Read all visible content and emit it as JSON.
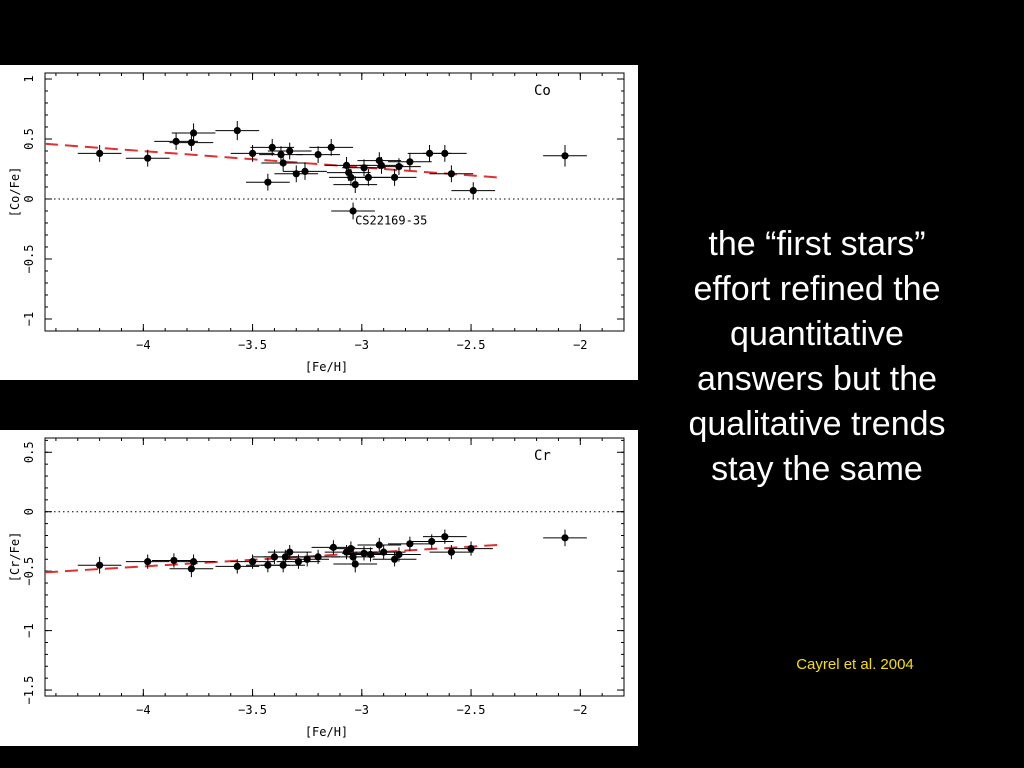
{
  "caption": {
    "lines": [
      "the “first stars”",
      "effort refined the",
      "quantitative",
      "answers but the",
      "qualitative trends",
      "stay the same"
    ]
  },
  "credit": "Cayrel et al. 2004",
  "colors": {
    "background": "#000000",
    "caption": "#ffffff",
    "credit": "#f5e000",
    "trend": "#e03030",
    "points": "#000000"
  },
  "chart_data": [
    {
      "type": "scatter",
      "element_label": "Co",
      "xlabel": "[Fe/H]",
      "ylabel": "[Co/Fe]",
      "xlim": [
        -4.45,
        -1.8
      ],
      "ylim": [
        -1.1,
        1.05
      ],
      "xticks": [
        -4,
        -3.5,
        -3,
        -2.5,
        -2
      ],
      "xtick_labels": [
        "−4",
        "−3.5",
        "−3",
        "−2.5",
        "−2"
      ],
      "yticks": [
        -1,
        -0.5,
        0,
        0.5,
        1
      ],
      "ytick_labels": [
        "−1",
        "−0.5",
        "0",
        "0.5",
        "1"
      ],
      "reference_line": 0,
      "trend": {
        "x": [
          -4.45,
          -2.38
        ],
        "y": [
          0.46,
          0.18
        ],
        "style": "dashed",
        "color": "#e03030"
      },
      "annotations": [
        {
          "text": "CS22169-35",
          "x": -3.04,
          "y": -0.18
        }
      ],
      "points": [
        {
          "x": -4.2,
          "y": 0.38,
          "xerr": 0.1,
          "yerr": 0.07
        },
        {
          "x": -3.98,
          "y": 0.34,
          "xerr": 0.1,
          "yerr": 0.07
        },
        {
          "x": -3.85,
          "y": 0.48,
          "xerr": 0.1,
          "yerr": 0.07
        },
        {
          "x": -3.78,
          "y": 0.47,
          "xerr": 0.1,
          "yerr": 0.07
        },
        {
          "x": -3.77,
          "y": 0.55,
          "xerr": 0.1,
          "yerr": 0.08
        },
        {
          "x": -3.57,
          "y": 0.57,
          "xerr": 0.1,
          "yerr": 0.08
        },
        {
          "x": -3.5,
          "y": 0.38,
          "xerr": 0.1,
          "yerr": 0.07
        },
        {
          "x": -3.43,
          "y": 0.14,
          "xerr": 0.1,
          "yerr": 0.07
        },
        {
          "x": -3.41,
          "y": 0.43,
          "xerr": 0.1,
          "yerr": 0.07
        },
        {
          "x": -3.37,
          "y": 0.37,
          "xerr": 0.1,
          "yerr": 0.07
        },
        {
          "x": -3.36,
          "y": 0.3,
          "xerr": 0.1,
          "yerr": 0.07
        },
        {
          "x": -3.33,
          "y": 0.4,
          "xerr": 0.1,
          "yerr": 0.07
        },
        {
          "x": -3.3,
          "y": 0.21,
          "xerr": 0.1,
          "yerr": 0.07
        },
        {
          "x": -3.26,
          "y": 0.23,
          "xerr": 0.1,
          "yerr": 0.07
        },
        {
          "x": -3.2,
          "y": 0.37,
          "xerr": 0.1,
          "yerr": 0.07
        },
        {
          "x": -3.14,
          "y": 0.43,
          "xerr": 0.1,
          "yerr": 0.07
        },
        {
          "x": -3.07,
          "y": 0.28,
          "xerr": 0.1,
          "yerr": 0.07
        },
        {
          "x": -3.06,
          "y": 0.22,
          "xerr": 0.1,
          "yerr": 0.07
        },
        {
          "x": -3.05,
          "y": 0.18,
          "xerr": 0.1,
          "yerr": 0.07
        },
        {
          "x": -3.04,
          "y": -0.1,
          "xerr": 0.1,
          "yerr": 0.07
        },
        {
          "x": -3.03,
          "y": 0.12,
          "xerr": 0.1,
          "yerr": 0.07
        },
        {
          "x": -2.99,
          "y": 0.26,
          "xerr": 0.1,
          "yerr": 0.07
        },
        {
          "x": -2.97,
          "y": 0.18,
          "xerr": 0.1,
          "yerr": 0.07
        },
        {
          "x": -2.92,
          "y": 0.32,
          "xerr": 0.1,
          "yerr": 0.07
        },
        {
          "x": -2.91,
          "y": 0.28,
          "xerr": 0.1,
          "yerr": 0.07
        },
        {
          "x": -2.85,
          "y": 0.18,
          "xerr": 0.1,
          "yerr": 0.07
        },
        {
          "x": -2.83,
          "y": 0.27,
          "xerr": 0.1,
          "yerr": 0.07
        },
        {
          "x": -2.78,
          "y": 0.31,
          "xerr": 0.1,
          "yerr": 0.07
        },
        {
          "x": -2.69,
          "y": 0.38,
          "xerr": 0.1,
          "yerr": 0.07
        },
        {
          "x": -2.62,
          "y": 0.38,
          "xerr": 0.1,
          "yerr": 0.07
        },
        {
          "x": -2.59,
          "y": 0.21,
          "xerr": 0.1,
          "yerr": 0.07
        },
        {
          "x": -2.49,
          "y": 0.07,
          "xerr": 0.1,
          "yerr": 0.07
        },
        {
          "x": -2.07,
          "y": 0.36,
          "xerr": 0.1,
          "yerr": 0.09
        }
      ]
    },
    {
      "type": "scatter",
      "element_label": "Cr",
      "xlabel": "[Fe/H]",
      "ylabel": "[Cr/Fe]",
      "xlim": [
        -4.45,
        -1.8
      ],
      "ylim": [
        -1.55,
        0.62
      ],
      "xticks": [
        -4,
        -3.5,
        -3,
        -2.5,
        -2
      ],
      "xtick_labels": [
        "−4",
        "−3.5",
        "−3",
        "−2.5",
        "−2"
      ],
      "yticks": [
        -1.5,
        -1,
        -0.5,
        0,
        0.5
      ],
      "ytick_labels": [
        "−1.5",
        "−1",
        "−0.5",
        "0",
        "0.5"
      ],
      "reference_line": 0,
      "trend": {
        "x": [
          -4.45,
          -2.38
        ],
        "y": [
          -0.51,
          -0.28
        ],
        "style": "dashed",
        "color": "#e03030"
      },
      "annotations": [],
      "points": [
        {
          "x": -4.2,
          "y": -0.45,
          "xerr": 0.1,
          "yerr": 0.07
        },
        {
          "x": -3.98,
          "y": -0.42,
          "xerr": 0.1,
          "yerr": 0.06
        },
        {
          "x": -3.86,
          "y": -0.41,
          "xerr": 0.1,
          "yerr": 0.06
        },
        {
          "x": -3.78,
          "y": -0.48,
          "xerr": 0.1,
          "yerr": 0.07
        },
        {
          "x": -3.77,
          "y": -0.42,
          "xerr": 0.1,
          "yerr": 0.06
        },
        {
          "x": -3.57,
          "y": -0.46,
          "xerr": 0.1,
          "yerr": 0.06
        },
        {
          "x": -3.5,
          "y": -0.42,
          "xerr": 0.1,
          "yerr": 0.06
        },
        {
          "x": -3.43,
          "y": -0.45,
          "xerr": 0.1,
          "yerr": 0.06
        },
        {
          "x": -3.4,
          "y": -0.38,
          "xerr": 0.1,
          "yerr": 0.06
        },
        {
          "x": -3.36,
          "y": -0.45,
          "xerr": 0.1,
          "yerr": 0.06
        },
        {
          "x": -3.35,
          "y": -0.38,
          "xerr": 0.1,
          "yerr": 0.06
        },
        {
          "x": -3.33,
          "y": -0.34,
          "xerr": 0.1,
          "yerr": 0.06
        },
        {
          "x": -3.29,
          "y": -0.42,
          "xerr": 0.1,
          "yerr": 0.06
        },
        {
          "x": -3.25,
          "y": -0.4,
          "xerr": 0.1,
          "yerr": 0.06
        },
        {
          "x": -3.2,
          "y": -0.38,
          "xerr": 0.1,
          "yerr": 0.06
        },
        {
          "x": -3.13,
          "y": -0.3,
          "xerr": 0.1,
          "yerr": 0.06
        },
        {
          "x": -3.07,
          "y": -0.34,
          "xerr": 0.1,
          "yerr": 0.06
        },
        {
          "x": -3.05,
          "y": -0.31,
          "xerr": 0.1,
          "yerr": 0.06
        },
        {
          "x": -3.04,
          "y": -0.38,
          "xerr": 0.1,
          "yerr": 0.06
        },
        {
          "x": -3.03,
          "y": -0.44,
          "xerr": 0.1,
          "yerr": 0.07
        },
        {
          "x": -2.99,
          "y": -0.35,
          "xerr": 0.1,
          "yerr": 0.06
        },
        {
          "x": -2.96,
          "y": -0.36,
          "xerr": 0.1,
          "yerr": 0.06
        },
        {
          "x": -2.92,
          "y": -0.28,
          "xerr": 0.1,
          "yerr": 0.06
        },
        {
          "x": -2.9,
          "y": -0.34,
          "xerr": 0.1,
          "yerr": 0.06
        },
        {
          "x": -2.85,
          "y": -0.4,
          "xerr": 0.1,
          "yerr": 0.06
        },
        {
          "x": -2.83,
          "y": -0.36,
          "xerr": 0.1,
          "yerr": 0.06
        },
        {
          "x": -2.78,
          "y": -0.27,
          "xerr": 0.1,
          "yerr": 0.06
        },
        {
          "x": -2.68,
          "y": -0.25,
          "xerr": 0.1,
          "yerr": 0.06
        },
        {
          "x": -2.62,
          "y": -0.21,
          "xerr": 0.1,
          "yerr": 0.06
        },
        {
          "x": -2.59,
          "y": -0.34,
          "xerr": 0.1,
          "yerr": 0.06
        },
        {
          "x": -2.5,
          "y": -0.31,
          "xerr": 0.1,
          "yerr": 0.06
        },
        {
          "x": -2.07,
          "y": -0.22,
          "xerr": 0.1,
          "yerr": 0.07
        }
      ]
    }
  ]
}
